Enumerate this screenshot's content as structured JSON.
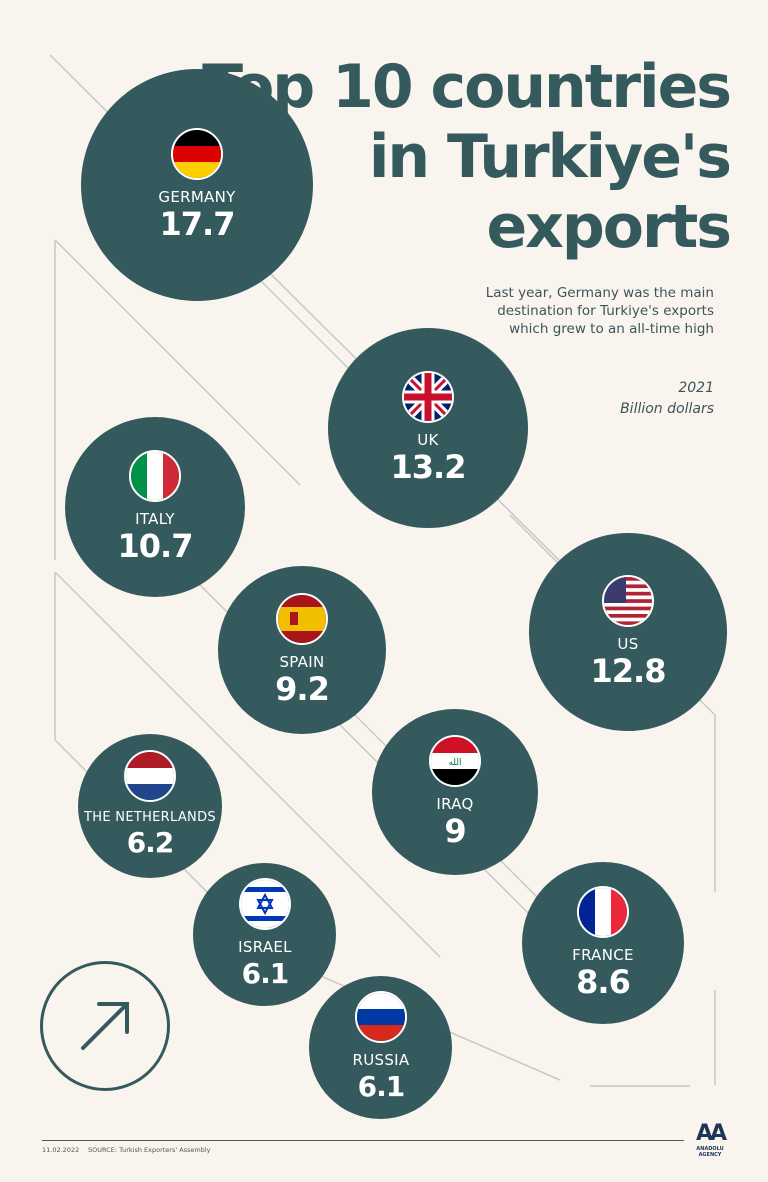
{
  "header": {
    "title_lines": [
      "Top 10 countries",
      "in Turkiye's",
      "exports"
    ],
    "subtitle": "Last year, Germany was the main destination for Turkiye's exports which grew to an all-time high",
    "year": "2021",
    "unit": "Billion dollars"
  },
  "chart_data": {
    "type": "bubble",
    "title": "Top 10 countries in Turkiye's exports",
    "unit": "Billion dollars",
    "year": "2021",
    "categories": [
      "GERMANY",
      "UK",
      "US",
      "ITALY",
      "SPAIN",
      "IRAQ",
      "FRANCE",
      "THE NETHERLANDS",
      "ISRAEL",
      "RUSSIA"
    ],
    "values": [
      17.7,
      13.2,
      12.8,
      10.7,
      9.2,
      9,
      8.6,
      6.2,
      6.1,
      6.1
    ],
    "value_labels": [
      "17.7",
      "13.2",
      "12.8",
      "10.7",
      "9.2",
      "9",
      "8.6",
      "6.2",
      "6.1",
      "6.1"
    ],
    "flags": [
      "germany",
      "uk",
      "us",
      "italy",
      "spain",
      "iraq",
      "france",
      "netherlands",
      "israel",
      "russia"
    ],
    "bubble_color": "#355a5d"
  },
  "colors": {
    "background": "#faf4ef",
    "bubble": "#355a5d",
    "line": "#c5c9c6"
  },
  "footer": {
    "date": "11.02.2022",
    "source": "SOURCE: Turkish Exporters' Assembly",
    "logo_mark": "AA",
    "logo_text": "ANADOLU AGENCY"
  },
  "icons": {
    "arrow": "arrow-up-right-icon"
  }
}
